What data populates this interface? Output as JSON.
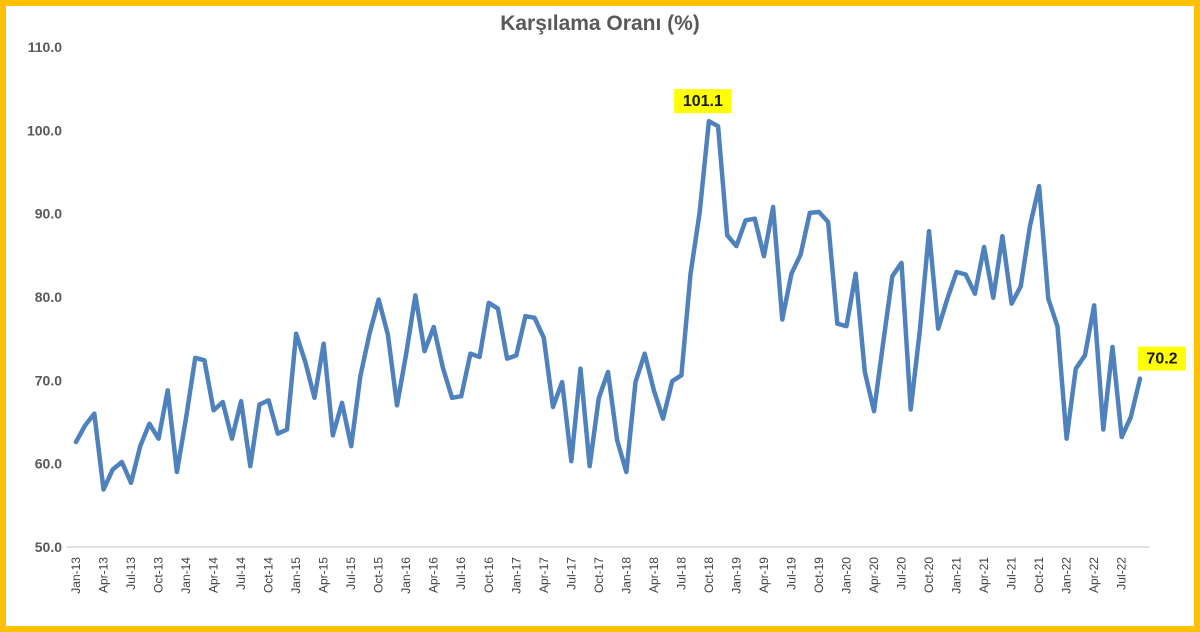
{
  "chart_data": {
    "type": "line",
    "title": "Karşılama Oranı (%)",
    "xlabel": "",
    "ylabel": "",
    "ylim": [
      50,
      110
    ],
    "yticks": [
      "50.0",
      "60.0",
      "70.0",
      "80.0",
      "90.0",
      "100.0",
      "110.0"
    ],
    "grid": false,
    "legend": "none",
    "line_color": "#4F81BD",
    "callout_color": "#FFFF00",
    "x_tick_labels": [
      "Jan-13",
      "Apr-13",
      "Jul-13",
      "Oct-13",
      "Jan-14",
      "Apr-14",
      "Jul-14",
      "Oct-14",
      "Jan-15",
      "Apr-15",
      "Jul-15",
      "Oct-15",
      "Jan-16",
      "Apr-16",
      "Jul-16",
      "Oct-16",
      "Jan-17",
      "Apr-17",
      "Jul-17",
      "Oct-17",
      "Jan-18",
      "Apr-18",
      "Jul-18",
      "Oct-18",
      "Jan-19",
      "Apr-19",
      "Jul-19",
      "Oct-19",
      "Jan-20",
      "Apr-20",
      "Jul-20",
      "Oct-20",
      "Jan-21",
      "Apr-21",
      "Jul-21",
      "Oct-21",
      "Jan-22",
      "Apr-22",
      "Jul-22"
    ],
    "x_start": "Jan-13",
    "x_end": "Sep-22",
    "series": [
      {
        "values": [
          62.6,
          64.6,
          66.0,
          56.9,
          59.3,
          60.2,
          57.7,
          62.1,
          64.8,
          63.0,
          68.8,
          59.0,
          65.5,
          72.7,
          72.4,
          66.4,
          67.4,
          63.0,
          67.5,
          59.7,
          67.1,
          67.6,
          63.6,
          64.1,
          75.6,
          72.2,
          67.9,
          74.4,
          63.4,
          67.3,
          62.1,
          70.5,
          75.6,
          79.7,
          75.5,
          67.0,
          73.2,
          80.2,
          73.5,
          76.4,
          71.5,
          67.9,
          68.1,
          73.2,
          72.8,
          79.3,
          78.6,
          72.6,
          73.0,
          77.7,
          77.5,
          75.1,
          66.8,
          69.8,
          60.3,
          71.4,
          59.7,
          67.9,
          71.0,
          62.8,
          59.0,
          69.8,
          73.2,
          68.8,
          65.4,
          69.9,
          70.6,
          82.8,
          90.2,
          101.1,
          100.5,
          87.4,
          86.1,
          89.2,
          89.4,
          84.9,
          90.8,
          77.3,
          82.8,
          85.1,
          90.1,
          90.2,
          89.0,
          76.8,
          76.5,
          82.8,
          71.0,
          66.3,
          74.5,
          82.5,
          84.1,
          66.5,
          76.0,
          87.9,
          76.2,
          79.8,
          83.0,
          82.7,
          80.4,
          86.0,
          79.9,
          87.3,
          79.2,
          81.3,
          88.5,
          93.3,
          79.8,
          76.5,
          63.0,
          71.4,
          73.0,
          79.0,
          64.1,
          74.0,
          63.2,
          65.6,
          70.2
        ]
      }
    ],
    "annotations": [
      {
        "index": 69,
        "text": "101.1"
      },
      {
        "index": 116,
        "text": "70.2"
      }
    ]
  }
}
